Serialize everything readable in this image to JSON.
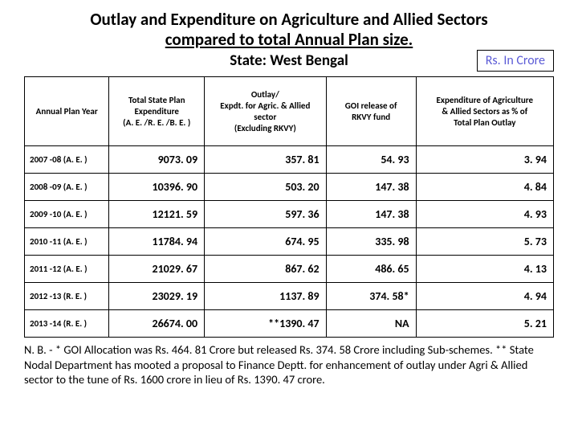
{
  "title_line1": "Outlay and Expenditure on Agriculture and Allied Sectors",
  "title_line2": "compared to total Annual Plan size.",
  "subtitle": "State: West Bengal",
  "unit_label": "Rs. In Crore",
  "columns": [
    "Annual Plan Year",
    "Total State Plan\nExpenditure\n(A. E. /R. E. /B. E. )",
    "Outlay/\nExpdt. for Agric. & Allied\nsector\n(Excluding RKVY)",
    "GOI release of\nRKVY fund",
    "Expenditure of Agriculture\n& Allied Sectors as % of\nTotal Plan Outlay"
  ],
  "rows": [
    [
      "2007 -08 (A. E. )",
      "9073. 09",
      "357. 81",
      "54. 93",
      "3. 94"
    ],
    [
      "2008 -09 (A. E. )",
      "10396. 90",
      "503. 20",
      "147. 38",
      "4. 84"
    ],
    [
      "2009 -10 (A. E. )",
      "12121. 59",
      "597. 36",
      "147. 38",
      "4. 93"
    ],
    [
      "2010 -11 (A. E. )",
      "11784. 94",
      "674. 95",
      "335. 98",
      "5. 73"
    ],
    [
      "2011 -12 (A. E. )",
      "21029. 67",
      "867. 62",
      "486. 65",
      "4. 13"
    ],
    [
      "2012 -13 (R. E. )",
      "23029. 19",
      "1137. 89",
      "374. 58*",
      "4. 94"
    ],
    [
      "2013 -14 (R. E. )",
      "26674. 00",
      "**1390. 47",
      "NA",
      "5. 21"
    ]
  ],
  "footnote": "N. B. - * GOI Allocation was Rs. 464. 81 Crore but released Rs. 374. 58 Crore including Sub-schemes. ** State Nodal Department has mooted a proposal to Finance Deptt. for enhancement of outlay under Agri & Allied sector to the tune of Rs. 1600 crore in lieu of Rs. 1390. 47 crore.",
  "styling": {
    "table_border_color": "#000000",
    "unit_text_color": "#5b5bd6",
    "background": "#ffffff",
    "title_fontsize": 21,
    "subtitle_fontsize": 19,
    "header_fontsize": 11,
    "cell_fontsize": 14,
    "year_fontsize": 11,
    "footnote_fontsize": 14.5,
    "col_widths_pct": [
      16,
      18,
      23,
      17,
      26
    ]
  }
}
